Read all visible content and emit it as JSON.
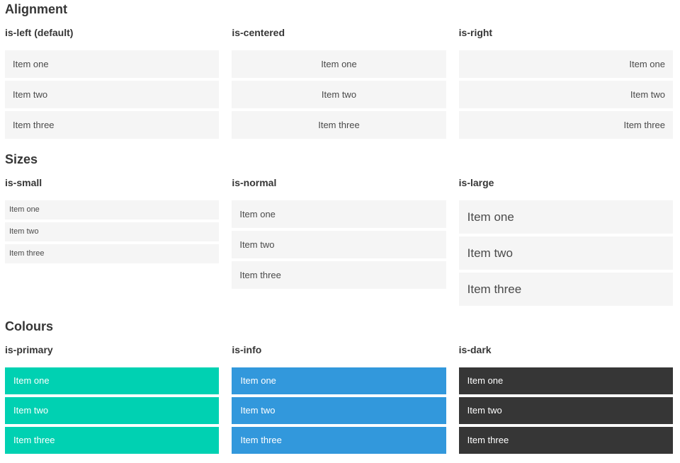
{
  "colors": {
    "heading_text": "#363636",
    "item_bg": "#f5f5f5",
    "item_text": "#4a4a4a",
    "colored_text": "#ffffff",
    "primary": "#00d1b2",
    "info": "#3298dc",
    "dark": "#363636"
  },
  "sections": [
    {
      "title": "Alignment",
      "columns": [
        {
          "label": "is-left (default)",
          "modifier": "is-left",
          "items": [
            "Item one",
            "Item two",
            "Item three"
          ]
        },
        {
          "label": "is-centered",
          "modifier": "is-centered",
          "items": [
            "Item one",
            "Item two",
            "Item three"
          ]
        },
        {
          "label": "is-right",
          "modifier": "is-right",
          "items": [
            "Item one",
            "Item two",
            "Item three"
          ]
        }
      ]
    },
    {
      "title": "Sizes",
      "columns": [
        {
          "label": "is-small",
          "modifier": "is-small",
          "items": [
            "Item one",
            "Item two",
            "Item three"
          ]
        },
        {
          "label": "is-normal",
          "modifier": "is-normal",
          "items": [
            "Item one",
            "Item two",
            "Item three"
          ]
        },
        {
          "label": "is-large",
          "modifier": "is-large",
          "items": [
            "Item one",
            "Item two",
            "Item three"
          ]
        }
      ]
    },
    {
      "title": "Colours",
      "columns": [
        {
          "label": "is-primary",
          "modifier": "is-primary",
          "items": [
            "Item one",
            "Item two",
            "Item three"
          ]
        },
        {
          "label": "is-info",
          "modifier": "is-info",
          "items": [
            "Item one",
            "Item two",
            "Item three"
          ]
        },
        {
          "label": "is-dark",
          "modifier": "is-dark",
          "items": [
            "Item one",
            "Item two",
            "Item three"
          ]
        }
      ]
    }
  ]
}
